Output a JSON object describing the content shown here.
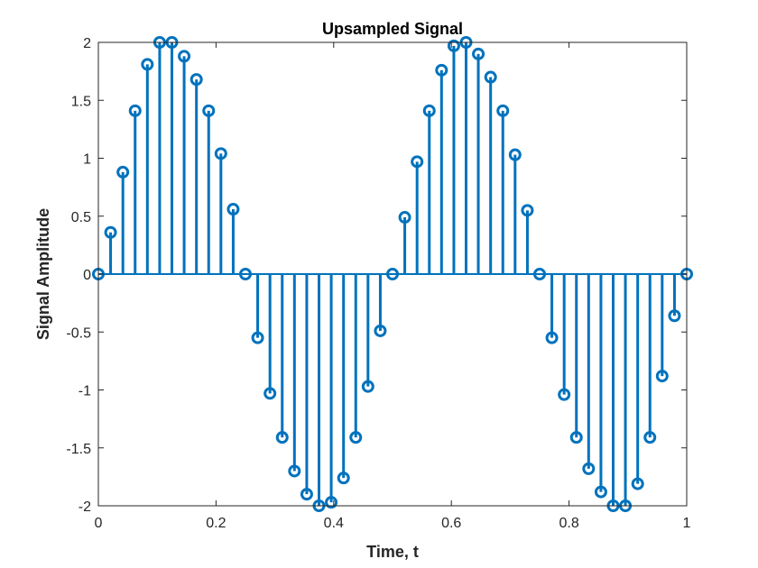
{
  "chart_data": {
    "type": "stem",
    "title": "Upsampled Signal",
    "xlabel": "Time, t",
    "ylabel": "Signal Amplitude",
    "xlim": [
      0,
      1
    ],
    "ylim": [
      -2,
      2
    ],
    "xticks": [
      0,
      0.2,
      0.4,
      0.6,
      0.8,
      1
    ],
    "xtick_labels": [
      "0",
      "0.2",
      "0.4",
      "0.6",
      "0.8",
      "1"
    ],
    "yticks": [
      -2,
      -1.5,
      -1,
      -0.5,
      0,
      0.5,
      1,
      1.5,
      2
    ],
    "ytick_labels": [
      "-2",
      "-1.5",
      "-1",
      "-0.5",
      "0",
      "0.5",
      "1",
      "1.5",
      "2"
    ],
    "grid": false,
    "series": [
      {
        "color": "#0072BD",
        "x": [
          0,
          0.0208,
          0.0417,
          0.0625,
          0.0833,
          0.1042,
          0.125,
          0.1458,
          0.1667,
          0.1875,
          0.2083,
          0.2292,
          0.25,
          0.2708,
          0.2917,
          0.3125,
          0.3333,
          0.3542,
          0.375,
          0.3958,
          0.4167,
          0.4375,
          0.4583,
          0.4792,
          0.5,
          0.5208,
          0.5417,
          0.5625,
          0.5833,
          0.6042,
          0.625,
          0.6458,
          0.6667,
          0.6875,
          0.7083,
          0.7292,
          0.75,
          0.7708,
          0.7917,
          0.8125,
          0.8333,
          0.8542,
          0.875,
          0.8958,
          0.9167,
          0.9375,
          0.9583,
          0.9792,
          1
        ],
        "y": [
          0,
          0.36,
          0.88,
          1.41,
          1.81,
          2.0,
          2.0,
          1.88,
          1.68,
          1.41,
          1.04,
          0.56,
          0,
          -0.55,
          -1.03,
          -1.41,
          -1.7,
          -1.9,
          -2.0,
          -1.97,
          -1.76,
          -1.41,
          -0.97,
          -0.49,
          0,
          0.49,
          0.97,
          1.41,
          1.76,
          1.97,
          2.0,
          1.9,
          1.7,
          1.41,
          1.03,
          0.55,
          0,
          -0.55,
          -1.04,
          -1.41,
          -1.68,
          -1.88,
          -2.0,
          -2.0,
          -1.81,
          -1.41,
          -0.88,
          -0.36,
          0
        ]
      }
    ]
  }
}
